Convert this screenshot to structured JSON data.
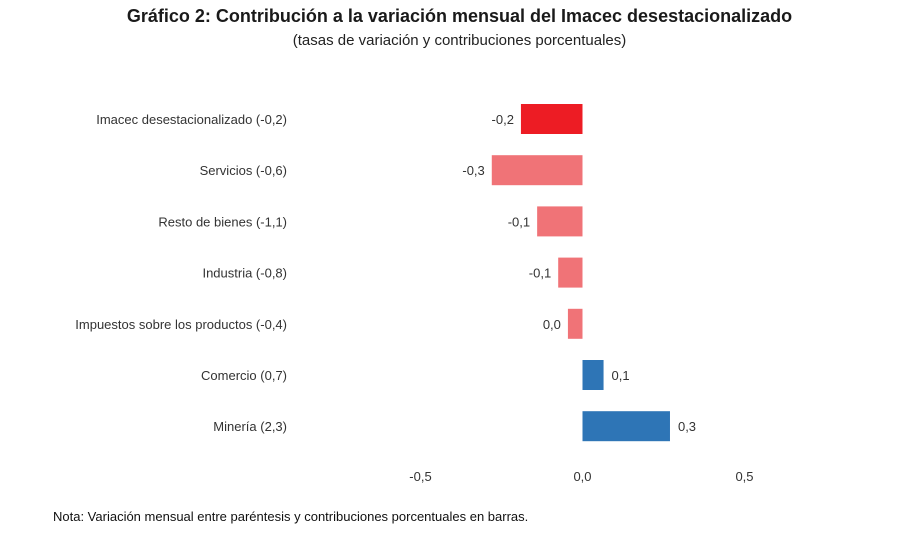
{
  "title": "Gráfico 2: Contribución a la variación mensual del Imacec desestacionalizado",
  "subtitle": "(tasas de variación y contribuciones porcentuales)",
  "note": "Nota: Variación mensual entre paréntesis y contribuciones porcentuales en barras.",
  "colors": {
    "highlight_negative": "#ed1c24",
    "negative": "#f07377",
    "positive": "#2e75b6"
  },
  "chart_data": {
    "type": "bar",
    "orientation": "horizontal",
    "categories": [
      "Imacec desestacionalizado (-0,2)",
      "Servicios (-0,6)",
      "Resto de bienes (-1,1)",
      "Industria (-0,8)",
      "Impuestos sobre los productos (-0,4)",
      "Comercio (0,7)",
      "Minería (2,3)"
    ],
    "values": [
      -0.19,
      -0.28,
      -0.14,
      -0.075,
      -0.045,
      0.065,
      0.27
    ],
    "data_labels": [
      "-0,2",
      "-0,3",
      "-0,1",
      "-0,1",
      "0,0",
      "0,1",
      "0,3"
    ],
    "bar_colors": [
      "highlight_negative",
      "negative",
      "negative",
      "negative",
      "negative",
      "positive",
      "positive"
    ],
    "xlim": [
      -0.5,
      0.5
    ],
    "xticks": [
      -0.5,
      0.0,
      0.5
    ],
    "xtick_labels": [
      "-0,5",
      "0,0",
      "0,5"
    ],
    "grid": false,
    "legend": false
  }
}
